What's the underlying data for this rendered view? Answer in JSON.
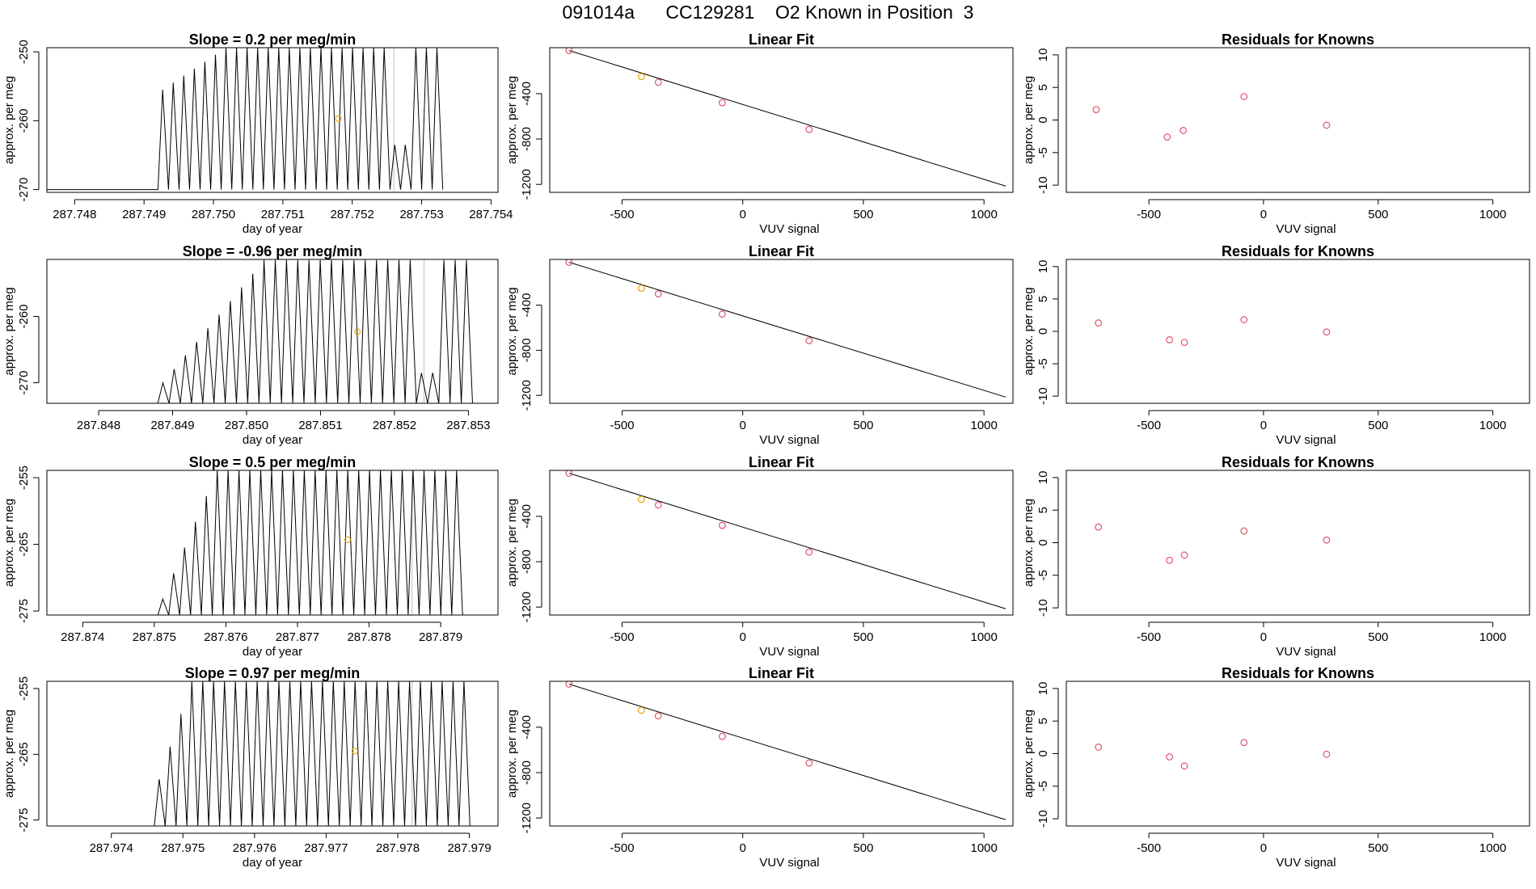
{
  "header": {
    "title": "091014a      CC129281    O2 Known in Position  3"
  },
  "colors": {
    "axis": "#000000",
    "trace": "#000000",
    "marker_orange": "#e69f00",
    "marker_red": "#df536b",
    "divider": "#bebebe"
  },
  "chart_data": [
    {
      "type": "line",
      "title": "Slope =  0.2  per meg/min",
      "xlabel": "day of year",
      "ylabel": "approx. per meg",
      "xlim": [
        287.7476,
        287.7541
      ],
      "ylim": [
        -270.4,
        -249.4
      ],
      "xticks": [
        287.748,
        287.749,
        287.75,
        287.751,
        287.752,
        287.753,
        287.754
      ],
      "xtick_labels": [
        "287.748",
        "287.749",
        "287.750",
        "287.751",
        "287.752",
        "287.753",
        "287.754"
      ],
      "yticks": [
        -270,
        -260,
        -250
      ],
      "ytick_labels": [
        "-270",
        "-260",
        "-250"
      ],
      "oscillation": {
        "start": 287.7492,
        "end": 287.75345,
        "period": 0.000152,
        "baseline": -270,
        "ramp_start_peak": -255.5,
        "peak": -249.4,
        "ramp_len": 6,
        "dip_positions": [
          287.7527
        ],
        "dip_peak": -263.5
      },
      "divider_x": 287.7526,
      "marker": {
        "x": 287.7518,
        "y": -259.7
      }
    },
    {
      "type": "line",
      "title": "Slope =  -0.96  per meg/min",
      "xlabel": "day of year",
      "ylabel": "approx. per meg",
      "xlim": [
        287.8473,
        287.8534
      ],
      "ylim": [
        -273.1,
        -251.4
      ],
      "xticks": [
        287.848,
        287.849,
        287.85,
        287.851,
        287.852,
        287.853
      ],
      "xtick_labels": [
        "287.848",
        "287.849",
        "287.850",
        "287.851",
        "287.852",
        "287.853"
      ],
      "yticks": [
        -270,
        -260
      ],
      "ytick_labels": [
        "-270",
        "-260"
      ],
      "oscillation": {
        "start": 287.8488,
        "end": 287.8532,
        "period": 0.000152,
        "baseline": -273.1,
        "ramp_start_peak": -270,
        "peak": -251.5,
        "ramp_len": 9,
        "dip_positions": [
          287.8524,
          287.8525
        ],
        "dip_peak": -268.5
      },
      "divider_x": 287.8524,
      "marker": {
        "x": 287.8515,
        "y": -262.3
      }
    },
    {
      "type": "line",
      "title": "Slope =  0.5  per meg/min",
      "xlabel": "day of year",
      "ylabel": "approx. per meg",
      "xlim": [
        287.8735,
        287.8798
      ],
      "ylim": [
        -275.6,
        -253.9
      ],
      "xticks": [
        287.874,
        287.875,
        287.876,
        287.877,
        287.878,
        287.879
      ],
      "xtick_labels": [
        "287.874",
        "287.875",
        "287.876",
        "287.877",
        "287.878",
        "287.879"
      ],
      "yticks": [
        -275,
        -265,
        -255
      ],
      "ytick_labels": [
        "-275",
        "-265",
        "-255"
      ],
      "oscillation": {
        "start": 287.87505,
        "end": 287.8794,
        "period": 0.000152,
        "baseline": -275.6,
        "ramp_start_peak": -273.2,
        "peak": -253.9,
        "ramp_len": 5,
        "dip_positions": [],
        "dip_peak": -270
      },
      "divider_x": 287.8786,
      "marker": {
        "x": 287.8777,
        "y": -264.3
      }
    },
    {
      "type": "line",
      "title": "Slope =  0.97  per meg/min",
      "xlabel": "day of year",
      "ylabel": "approx. per meg",
      "xlim": [
        287.9731,
        287.9794
      ],
      "ylim": [
        -275.9,
        -253.9
      ],
      "xticks": [
        287.974,
        287.975,
        287.976,
        287.977,
        287.978,
        287.979
      ],
      "xtick_labels": [
        "287.974",
        "287.975",
        "287.976",
        "287.977",
        "287.978",
        "287.979"
      ],
      "yticks": [
        -275,
        -265,
        -255
      ],
      "ytick_labels": [
        "-275",
        "-265",
        "-255"
      ],
      "oscillation": {
        "start": 287.9746,
        "end": 287.9791,
        "period": 0.000152,
        "baseline": -275.9,
        "ramp_start_peak": -268.8,
        "peak": -253.9,
        "ramp_len": 3,
        "dip_positions": [],
        "dip_peak": -270
      },
      "divider_x": 287.9782,
      "marker": {
        "x": 287.9774,
        "y": -264.5
      }
    },
    {
      "type": "scatter",
      "title": "Linear Fit",
      "xlabel": "VUV signal",
      "ylabel": "approx. per meg",
      "xlim": [
        -800,
        1120
      ],
      "ylim": [
        -1270,
        5
      ],
      "xticks": [
        -500,
        0,
        500,
        1000
      ],
      "xtick_labels": [
        "-500",
        "0",
        "500",
        "1000"
      ],
      "yticks": [
        -1200,
        -800,
        -400
      ],
      "ytick_labels": [
        "-1200",
        "-800",
        "-400"
      ],
      "line": [
        [
          -720,
          -20
        ],
        [
          1090,
          -1215
        ]
      ],
      "points": [
        {
          "x": -720,
          "y": -20,
          "color": "red"
        },
        {
          "x": -420,
          "y": -250,
          "color": "orange"
        },
        {
          "x": -350,
          "y": -300,
          "color": "red"
        },
        {
          "x": -85,
          "y": -480,
          "color": "red"
        },
        {
          "x": 275,
          "y": -715,
          "color": "red"
        }
      ]
    },
    {
      "type": "scatter",
      "title": "Linear Fit",
      "xlabel": "VUV signal",
      "ylabel": "approx. per meg",
      "xlim": [
        -800,
        1120
      ],
      "ylim": [
        -1270,
        5
      ],
      "xticks": [
        -500,
        0,
        500,
        1000
      ],
      "xtick_labels": [
        "-500",
        "0",
        "500",
        "1000"
      ],
      "yticks": [
        -1200,
        -800,
        -400
      ],
      "ytick_labels": [
        "-1200",
        "-800",
        "-400"
      ],
      "line": [
        [
          -720,
          -20
        ],
        [
          1090,
          -1215
        ]
      ],
      "points": [
        {
          "x": -720,
          "y": -20,
          "color": "red"
        },
        {
          "x": -420,
          "y": -250,
          "color": "orange"
        },
        {
          "x": -350,
          "y": -300,
          "color": "red"
        },
        {
          "x": -85,
          "y": -480,
          "color": "red"
        },
        {
          "x": 275,
          "y": -715,
          "color": "red"
        }
      ]
    },
    {
      "type": "scatter",
      "title": "Linear Fit",
      "xlabel": "VUV signal",
      "ylabel": "approx. per meg",
      "xlim": [
        -800,
        1120
      ],
      "ylim": [
        -1270,
        5
      ],
      "xticks": [
        -500,
        0,
        500,
        1000
      ],
      "xtick_labels": [
        "-500",
        "0",
        "500",
        "1000"
      ],
      "yticks": [
        -1200,
        -800,
        -400
      ],
      "ytick_labels": [
        "-1200",
        "-800",
        "-400"
      ],
      "line": [
        [
          -720,
          -20
        ],
        [
          1090,
          -1215
        ]
      ],
      "points": [
        {
          "x": -720,
          "y": -20,
          "color": "red"
        },
        {
          "x": -420,
          "y": -250,
          "color": "orange"
        },
        {
          "x": -350,
          "y": -300,
          "color": "red"
        },
        {
          "x": -85,
          "y": -480,
          "color": "red"
        },
        {
          "x": 275,
          "y": -715,
          "color": "red"
        }
      ]
    },
    {
      "type": "scatter",
      "title": "Linear Fit",
      "xlabel": "VUV signal",
      "ylabel": "approx. per meg",
      "xlim": [
        -800,
        1120
      ],
      "ylim": [
        -1270,
        5
      ],
      "xticks": [
        -500,
        0,
        500,
        1000
      ],
      "xtick_labels": [
        "-500",
        "0",
        "500",
        "1000"
      ],
      "yticks": [
        -1200,
        -800,
        -400
      ],
      "ytick_labels": [
        "-1200",
        "-800",
        "-400"
      ],
      "line": [
        [
          -720,
          -20
        ],
        [
          1090,
          -1215
        ]
      ],
      "points": [
        {
          "x": -720,
          "y": -20,
          "color": "red"
        },
        {
          "x": -420,
          "y": -250,
          "color": "orange"
        },
        {
          "x": -350,
          "y": -300,
          "color": "red"
        },
        {
          "x": -85,
          "y": -480,
          "color": "red"
        },
        {
          "x": 275,
          "y": -715,
          "color": "red"
        }
      ]
    },
    {
      "type": "scatter",
      "title": "Residuals for Knowns",
      "xlabel": "VUV signal",
      "ylabel": "approx. per meg",
      "xlim": [
        -860,
        1160
      ],
      "ylim": [
        -11.1,
        11.1
      ],
      "xticks": [
        -500,
        0,
        500,
        1000
      ],
      "xtick_labels": [
        "-500",
        "0",
        "500",
        "1000"
      ],
      "yticks": [
        -10,
        -5,
        0,
        5,
        10
      ],
      "ytick_labels": [
        "-10",
        "-5",
        "0",
        "5",
        "10"
      ],
      "points": [
        {
          "x": -730,
          "y": 1.6,
          "color": "red"
        },
        {
          "x": -420,
          "y": -2.6,
          "color": "red"
        },
        {
          "x": -350,
          "y": -1.6,
          "color": "red"
        },
        {
          "x": -85,
          "y": 3.6,
          "color": "red"
        },
        {
          "x": 275,
          "y": -0.8,
          "color": "red"
        }
      ]
    },
    {
      "type": "scatter",
      "title": "Residuals for Knowns",
      "xlabel": "VUV signal",
      "ylabel": "approx. per meg",
      "xlim": [
        -860,
        1160
      ],
      "ylim": [
        -11.1,
        11.1
      ],
      "xticks": [
        -500,
        0,
        500,
        1000
      ],
      "xtick_labels": [
        "-500",
        "0",
        "500",
        "1000"
      ],
      "yticks": [
        -10,
        -5,
        0,
        5,
        10
      ],
      "ytick_labels": [
        "-10",
        "-5",
        "0",
        "5",
        "10"
      ],
      "points": [
        {
          "x": -720,
          "y": 1.3,
          "color": "red"
        },
        {
          "x": -410,
          "y": -1.3,
          "color": "red"
        },
        {
          "x": -345,
          "y": -1.7,
          "color": "red"
        },
        {
          "x": -85,
          "y": 1.8,
          "color": "red"
        },
        {
          "x": 275,
          "y": -0.1,
          "color": "red"
        }
      ]
    },
    {
      "type": "scatter",
      "title": "Residuals for Knowns",
      "xlabel": "VUV signal",
      "ylabel": "approx. per meg",
      "xlim": [
        -860,
        1160
      ],
      "ylim": [
        -11.1,
        11.1
      ],
      "xticks": [
        -500,
        0,
        500,
        1000
      ],
      "xtick_labels": [
        "-500",
        "0",
        "500",
        "1000"
      ],
      "yticks": [
        -10,
        -5,
        0,
        5,
        10
      ],
      "ytick_labels": [
        "-10",
        "-5",
        "0",
        "5",
        "10"
      ],
      "points": [
        {
          "x": -720,
          "y": 2.4,
          "color": "red"
        },
        {
          "x": -410,
          "y": -2.7,
          "color": "red"
        },
        {
          "x": -345,
          "y": -1.9,
          "color": "red"
        },
        {
          "x": -85,
          "y": 1.8,
          "color": "red"
        },
        {
          "x": 275,
          "y": 0.4,
          "color": "red"
        }
      ]
    },
    {
      "type": "scatter",
      "title": "Residuals for Knowns",
      "xlabel": "VUV signal",
      "ylabel": "approx. per meg",
      "xlim": [
        -860,
        1160
      ],
      "ylim": [
        -11.1,
        11.1
      ],
      "xticks": [
        -500,
        0,
        500,
        1000
      ],
      "xtick_labels": [
        "-500",
        "0",
        "500",
        "1000"
      ],
      "yticks": [
        -10,
        -5,
        0,
        5,
        10
      ],
      "ytick_labels": [
        "-10",
        "-5",
        "0",
        "5",
        "10"
      ],
      "points": [
        {
          "x": -720,
          "y": 1.0,
          "color": "red"
        },
        {
          "x": -410,
          "y": -0.5,
          "color": "red"
        },
        {
          "x": -345,
          "y": -1.9,
          "color": "red"
        },
        {
          "x": -85,
          "y": 1.7,
          "color": "red"
        },
        {
          "x": 275,
          "y": -0.1,
          "color": "red"
        }
      ]
    }
  ]
}
